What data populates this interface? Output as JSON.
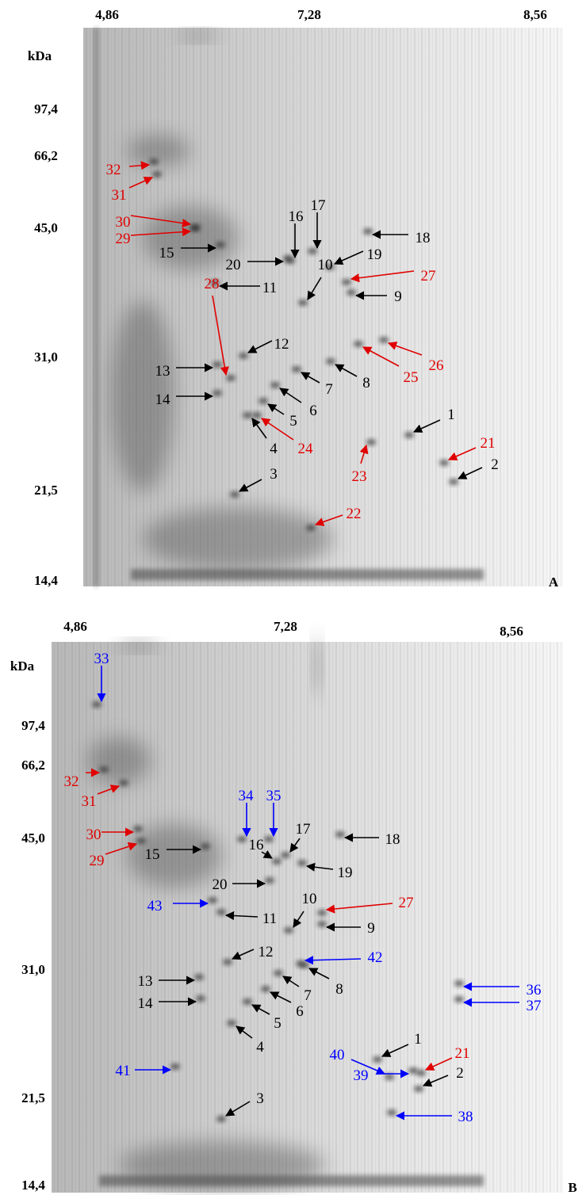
{
  "panels": [
    {
      "letter": "A",
      "unit": "kDa",
      "pI": [
        "4,86",
        "7,28",
        "8,56"
      ],
      "mw": [
        "97,4",
        "66,2",
        "45,0",
        "31,0",
        "21,5",
        "14,4"
      ],
      "spots": [
        {
          "label": "32"
        },
        {
          "label": "31"
        },
        {
          "label": "30"
        },
        {
          "label": "29"
        },
        {
          "label": "15"
        },
        {
          "label": "16"
        },
        {
          "label": "17"
        },
        {
          "label": "18"
        },
        {
          "label": "19"
        },
        {
          "label": "20"
        },
        {
          "label": "10"
        },
        {
          "label": "27"
        },
        {
          "label": "11"
        },
        {
          "label": "9"
        },
        {
          "label": "12"
        },
        {
          "label": "28"
        },
        {
          "label": "26"
        },
        {
          "label": "25"
        },
        {
          "label": "13"
        },
        {
          "label": "8"
        },
        {
          "label": "7"
        },
        {
          "label": "14"
        },
        {
          "label": "6"
        },
        {
          "label": "1"
        },
        {
          "label": "5"
        },
        {
          "label": "24"
        },
        {
          "label": "4"
        },
        {
          "label": "21"
        },
        {
          "label": "23"
        },
        {
          "label": "2"
        },
        {
          "label": "3"
        },
        {
          "label": "22"
        }
      ]
    },
    {
      "letter": "B",
      "unit": "kDa",
      "pI": [
        "4,86",
        "7,28",
        "8,56"
      ],
      "mw": [
        "97,4",
        "66,2",
        "45,0",
        "31,0",
        "21,5",
        "14,4"
      ],
      "spots": [
        {
          "label": "33"
        },
        {
          "label": "32"
        },
        {
          "label": "31"
        },
        {
          "label": "34"
        },
        {
          "label": "35"
        },
        {
          "label": "30"
        },
        {
          "label": "17"
        },
        {
          "label": "18"
        },
        {
          "label": "29"
        },
        {
          "label": "15"
        },
        {
          "label": "16"
        },
        {
          "label": "19"
        },
        {
          "label": "20"
        },
        {
          "label": "43"
        },
        {
          "label": "10"
        },
        {
          "label": "27"
        },
        {
          "label": "11"
        },
        {
          "label": "9"
        },
        {
          "label": "12"
        },
        {
          "label": "42"
        },
        {
          "label": "8"
        },
        {
          "label": "36"
        },
        {
          "label": "13"
        },
        {
          "label": "7"
        },
        {
          "label": "37"
        },
        {
          "label": "14"
        },
        {
          "label": "6"
        },
        {
          "label": "5"
        },
        {
          "label": "1"
        },
        {
          "label": "4"
        },
        {
          "label": "40"
        },
        {
          "label": "21"
        },
        {
          "label": "41"
        },
        {
          "label": "39"
        },
        {
          "label": "2"
        },
        {
          "label": "3"
        },
        {
          "label": "38"
        }
      ]
    }
  ]
}
